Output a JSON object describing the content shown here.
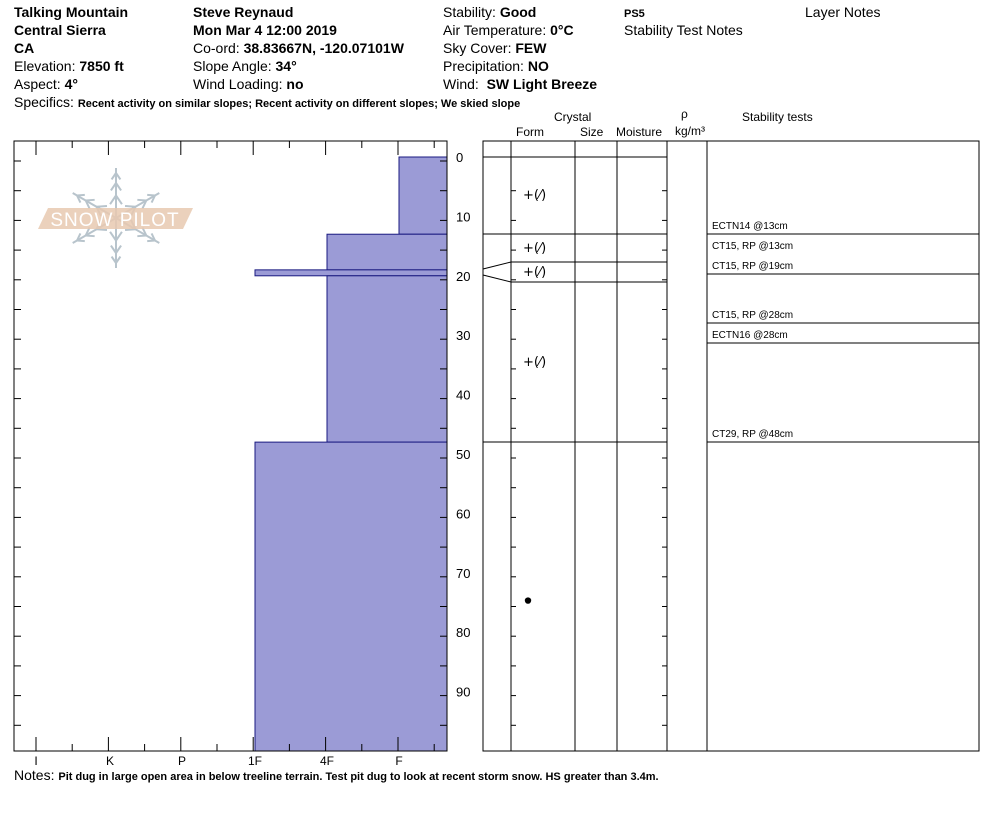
{
  "header": {
    "location": "Talking Mountain",
    "region": "Central Sierra",
    "state": "CA",
    "elevation_label": "Elevation: ",
    "elevation": "7850 ft",
    "aspect_label": "Aspect: ",
    "aspect": "4°",
    "observer": "Steve Reynaud",
    "datetime": "Mon Mar 4 12:00 2019",
    "coord_label": "Co-ord: ",
    "coord": "38.83667N, -120.07101W",
    "slope_label": "Slope Angle: ",
    "slope": "34°",
    "wind_loading_label": "Wind Loading: ",
    "wind_loading": "no",
    "stability_label": "Stability: ",
    "stability": "Good",
    "air_temp_label": "Air Temperature: ",
    "air_temp": "0°C",
    "sky_label": "Sky Cover: ",
    "sky": "FEW",
    "precip_label": "Precipitation: ",
    "precip": "NO",
    "wind_label": "Wind: ",
    "wind": " SW Light Breeze",
    "ps": "PS5",
    "stability_test_notes": "Stability Test Notes",
    "layer_notes": "Layer Notes",
    "specifics_label": "Specifics: ",
    "specifics": "Recent activity on similar slopes; Recent activity on different slopes; We skied slope"
  },
  "columns": {
    "crystal": "Crystal",
    "form": "Form",
    "size": "Size",
    "moisture": "Moisture",
    "rho": "ρ",
    "density_unit": "kg/m³",
    "stability_tests": "Stability tests"
  },
  "logo": "SNOW PILOT",
  "colors": {
    "layer_fill": "#9b9bd6",
    "layer_stroke": "#1a1a80",
    "logo_text": "#e8c9b0",
    "logo_flake": "#b8c4cc"
  },
  "hardness_axis": [
    "I",
    "K",
    "P",
    "1F",
    "4F",
    "F"
  ],
  "depth_ticks": [
    0,
    10,
    20,
    30,
    40,
    50,
    60,
    70,
    80,
    90
  ],
  "depth_range_cm": [
    0,
    100
  ],
  "layers": [
    {
      "top": 0,
      "bottom": 13,
      "hardness": "F",
      "form": "+(⁄)"
    },
    {
      "top": 13,
      "bottom": 19,
      "hardness": "4F",
      "form": "+(⁄)"
    },
    {
      "top": 19,
      "bottom": 20,
      "hardness": "1F",
      "form": "+(⁄)"
    },
    {
      "top": 20,
      "bottom": 48,
      "hardness": "4F",
      "form": "+(⁄)"
    },
    {
      "top": 48,
      "bottom": 100,
      "hardness": "1F",
      "form": ""
    }
  ],
  "stability_tests": [
    "ECTN14 @13cm",
    "CT15, RP @13cm",
    "CT15, RP @19cm",
    "CT15, RP @28cm",
    "ECTN16 @28cm",
    "CT29, RP @48cm"
  ],
  "temperature_point_depth_cm": 74,
  "notes_label": "Notes: ",
  "notes": "Pit dug in large open area in below treeline terrain. Test pit dug to look at recent storm snow. HS greater than 3.4m."
}
